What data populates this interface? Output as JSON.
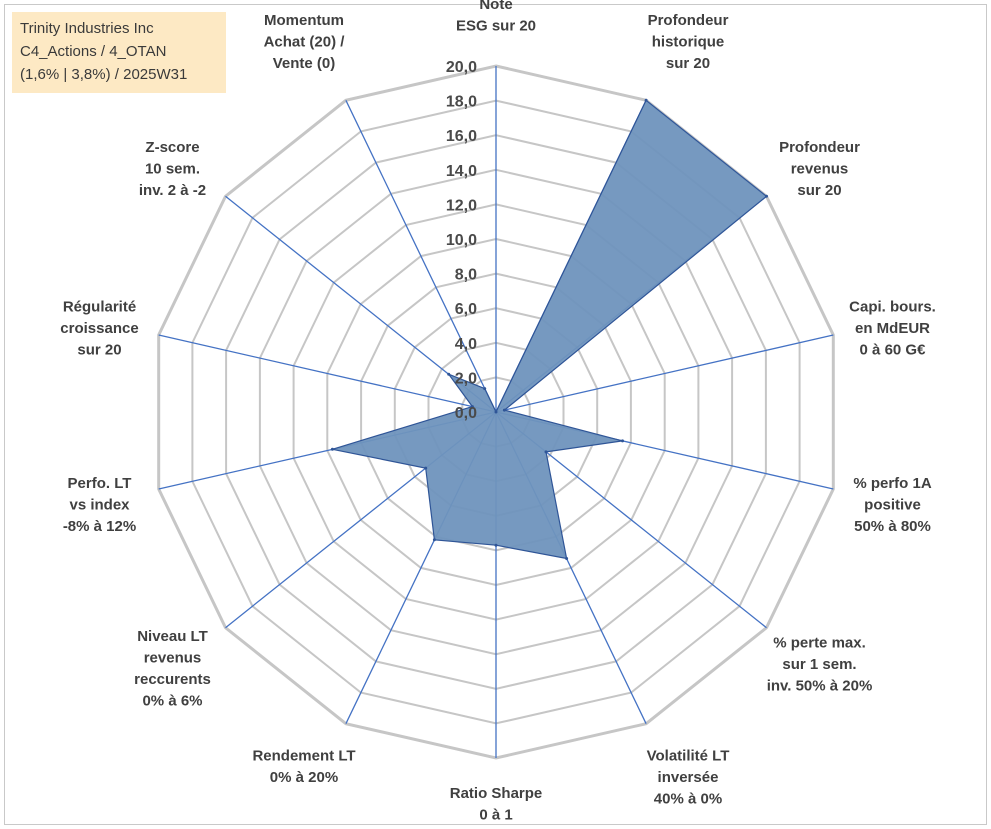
{
  "info_box": {
    "line1": "Trinity Industries Inc",
    "line2": "C4_Actions / 4_OTAN",
    "line3": "(1,6% | 3,8%) / 2025W31"
  },
  "colors": {
    "grid": "#c6c6c6",
    "spoke": "#4472c4",
    "fill": "#6f93bd",
    "stroke": "#2f5597",
    "info_bg": "#fde9c4"
  },
  "chart_data": {
    "type": "radar",
    "title": "",
    "rmin": 0,
    "rmax": 20,
    "tick_step": 2,
    "tick_labels": [
      "0,0",
      "2,0",
      "4,0",
      "6,0",
      "8,0",
      "10,0",
      "12,0",
      "14,0",
      "16,0",
      "18,0",
      "20,0"
    ],
    "axes": [
      {
        "label": [
          "Note",
          "ESG sur 20"
        ],
        "value": 0
      },
      {
        "label": [
          "Profondeur",
          "historique",
          "sur 20"
        ],
        "value": 20
      },
      {
        "label": [
          "Profondeur",
          "revenus",
          "sur 20"
        ],
        "value": 20
      },
      {
        "label": [
          "Capi. bours.",
          "en MdEUR",
          "0 à 60 G€"
        ],
        "value": 0.5
      },
      {
        "label": [
          "% perfo 1A",
          "positive",
          "50% à 80%"
        ],
        "value": 7.5
      },
      {
        "label": [
          "% perte max.",
          "sur 1 sem.",
          "inv. 50% à 20%"
        ],
        "value": 3.7
      },
      {
        "label": [
          "Volatilité LT",
          "inversée",
          "40% à 0%"
        ],
        "value": 9.4
      },
      {
        "label": [
          "Ratio Sharpe",
          "0 à 1"
        ],
        "value": 7.7
      },
      {
        "label": [
          "Rendement LT",
          "0% à 20%"
        ],
        "value": 8.2
      },
      {
        "label": [
          "Niveau LT",
          "revenus",
          "reccurents",
          "0% à 6%"
        ],
        "value": 5.2
      },
      {
        "label": [
          "Perfo. LT",
          "vs index",
          "-8% à 12%"
        ],
        "value": 9.7
      },
      {
        "label": [
          "Régularité",
          "croissance",
          "sur 20"
        ],
        "value": 1.4
      },
      {
        "label": [
          "Z-score",
          "10 sem.",
          "inv. 2 à -2"
        ],
        "value": 3.5
      },
      {
        "label": [
          "Momentum",
          "Achat (20) /",
          "Vente (0)"
        ],
        "value": 1.5
      }
    ]
  }
}
